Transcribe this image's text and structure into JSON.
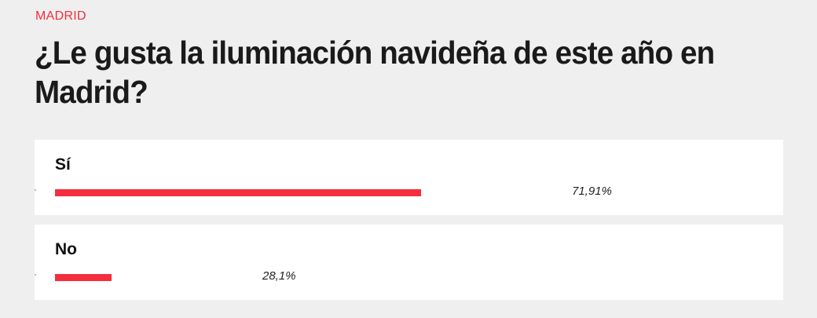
{
  "section": "MADRID",
  "title": "¿Le gusta la iluminación navideña de este año en Madrid?",
  "accent_color": "#f42e3e",
  "options": [
    {
      "label": "Sí",
      "percent": 71.91,
      "percent_label": "71,91%"
    },
    {
      "label": "No",
      "percent": 28.1,
      "percent_label": "28,1%"
    }
  ]
}
